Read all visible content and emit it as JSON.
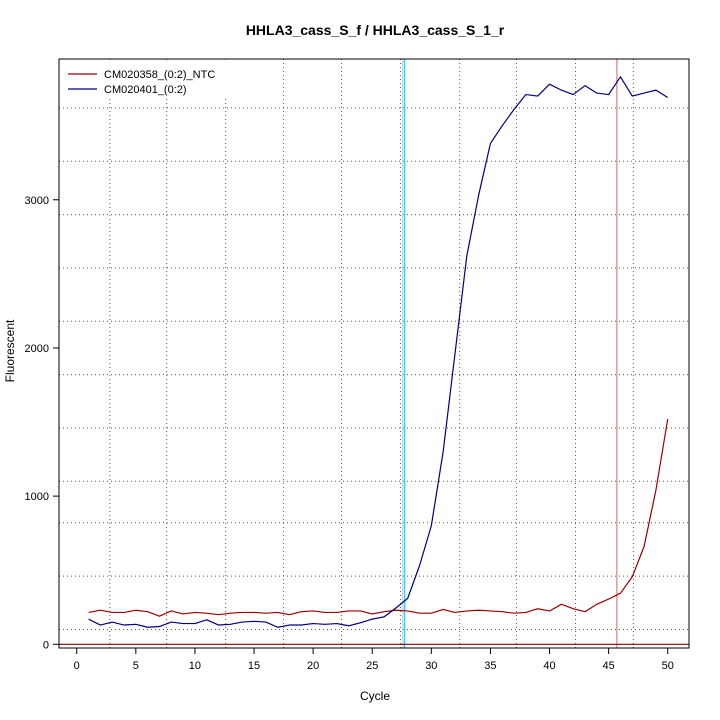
{
  "chart_data": {
    "type": "line",
    "title": "HHLA3_cass_S_f / HHLA3_cass_S_1_r",
    "xlabel": "Cycle",
    "ylabel": "Fluorescent",
    "xlim": [
      -1.5,
      51.8
    ],
    "ylim": [
      -25,
      3950
    ],
    "x_ticks": [
      0,
      5,
      10,
      15,
      20,
      25,
      30,
      35,
      40,
      45,
      50
    ],
    "x_tick_labels": [
      "0",
      "5",
      "10",
      "15",
      "20",
      "25",
      "30",
      "35",
      "40",
      "45",
      "50"
    ],
    "y_ticks": [
      0,
      1000,
      2000,
      3000
    ],
    "y_tick_labels": [
      "0",
      "1000",
      "2000",
      "3000"
    ],
    "grid": true,
    "grid_x": [
      2.8,
      7.6,
      12.6,
      17.5,
      22.4,
      27.4,
      32.4,
      37.2,
      42.2,
      47.1
    ],
    "grid_y": [
      100,
      460,
      820,
      1100,
      1460,
      1820,
      2180,
      2540,
      2900,
      3260,
      3620
    ],
    "legend": {
      "position": "top-left"
    },
    "vlines": [
      {
        "x": 27.6,
        "color": "#87CEEB"
      },
      {
        "x": 27.75,
        "color": "#00BFFF"
      },
      {
        "x": 45.7,
        "color": "#E06060"
      }
    ],
    "hlines": [
      {
        "y": 0,
        "color": "#8B0000"
      }
    ],
    "x": [
      1,
      2,
      3,
      4,
      5,
      6,
      7,
      8,
      9,
      10,
      11,
      12,
      13,
      14,
      15,
      16,
      17,
      18,
      19,
      20,
      21,
      22,
      23,
      24,
      25,
      26,
      27,
      28,
      29,
      30,
      31,
      32,
      33,
      34,
      35,
      36,
      37,
      38,
      39,
      40,
      41,
      42,
      43,
      44,
      45,
      46,
      47,
      48,
      49,
      50
    ],
    "series": [
      {
        "name": "CM020358_(0:2)_NTC",
        "color": "#990000",
        "values": [
          215,
          230,
          215,
          215,
          230,
          220,
          190,
          225,
          205,
          215,
          210,
          200,
          210,
          215,
          215,
          210,
          215,
          200,
          220,
          225,
          215,
          215,
          225,
          225,
          205,
          220,
          230,
          225,
          210,
          210,
          235,
          215,
          225,
          230,
          225,
          220,
          210,
          215,
          240,
          225,
          270,
          240,
          220,
          270,
          305,
          345,
          455,
          660,
          1040,
          1520
        ]
      },
      {
        "name": "CM020401_(0:2)",
        "color": "#000080",
        "values": [
          170,
          130,
          150,
          130,
          135,
          115,
          120,
          150,
          140,
          140,
          165,
          130,
          135,
          150,
          155,
          150,
          115,
          130,
          130,
          140,
          135,
          140,
          125,
          145,
          170,
          185,
          245,
          310,
          530,
          800,
          1300,
          1960,
          2620,
          3030,
          3380,
          3500,
          3610,
          3710,
          3700,
          3780,
          3740,
          3710,
          3770,
          3720,
          3710,
          3830,
          3700,
          3720,
          3740,
          3690
        ]
      }
    ]
  }
}
